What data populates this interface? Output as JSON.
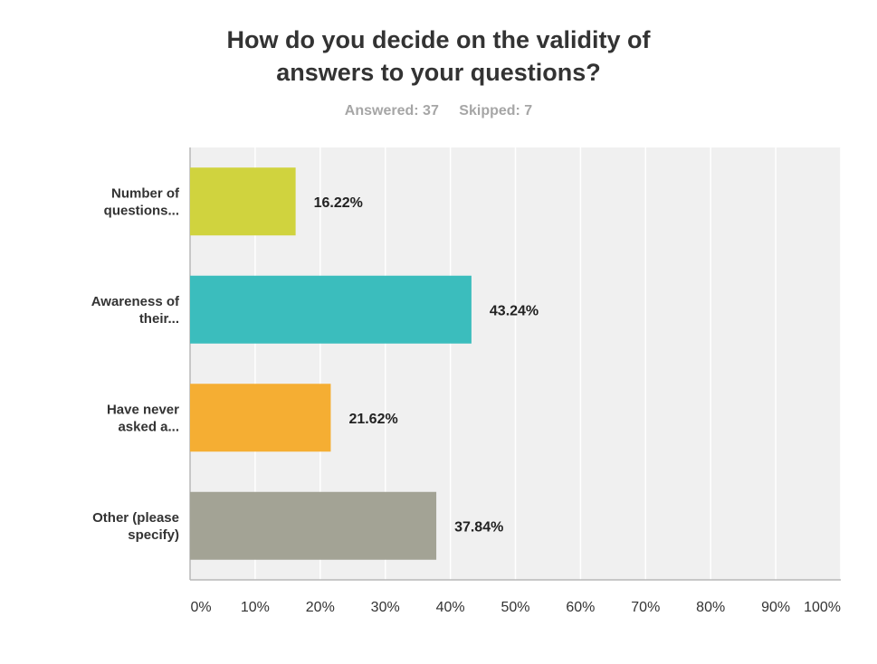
{
  "chart_data": {
    "type": "bar",
    "orientation": "horizontal",
    "title": [
      "How do you decide on the validity of",
      "answers to your questions?"
    ],
    "answered": "Answered: 37",
    "skipped": "Skipped: 7",
    "categories": [
      [
        "Number of",
        "questions..."
      ],
      [
        "Awareness of",
        "their..."
      ],
      [
        "Have never",
        "asked a..."
      ],
      [
        "Other (please",
        "specify)"
      ]
    ],
    "values": [
      16.22,
      43.24,
      21.62,
      37.84
    ],
    "value_labels": [
      "16.22%",
      "43.24%",
      "21.62%",
      "37.84%"
    ],
    "colors": [
      "#d0d33e",
      "#3bbdbd",
      "#f5ae33",
      "#a3a395"
    ],
    "xlim": [
      0,
      100
    ],
    "x_ticks": [
      0,
      10,
      20,
      30,
      40,
      50,
      60,
      70,
      80,
      90,
      100
    ],
    "x_tick_labels": [
      "0%",
      "10%",
      "20%",
      "30%",
      "40%",
      "50%",
      "60%",
      "70%",
      "80%",
      "90%",
      "100%"
    ],
    "grid": true,
    "plot_background": "#f0f0f0"
  }
}
